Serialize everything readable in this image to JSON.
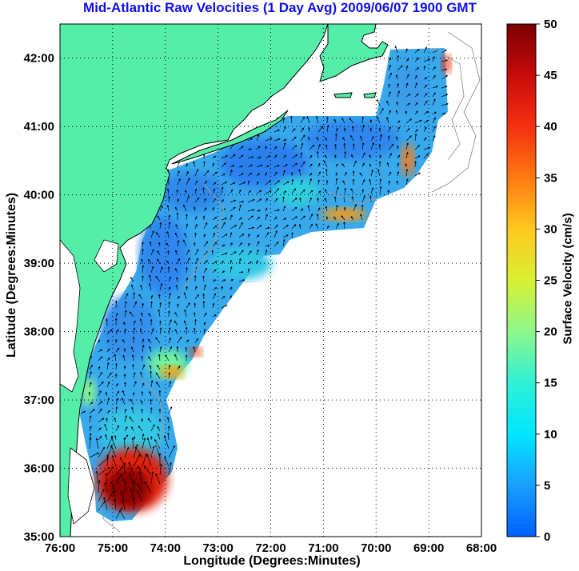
{
  "title": "Mid-Atlantic Raw Velocities (1 Day Avg) 2009/06/07 1900 GMT",
  "xlabel": "Longitude (Degrees:Minutes)",
  "ylabel": "Latitude (Degrees:Minutes)",
  "colorbar": {
    "label": "Surface Velocity (cm/s)",
    "min": 0,
    "max": 50,
    "ticks": [
      "0",
      "5",
      "10",
      "15",
      "20",
      "25",
      "30",
      "35",
      "40",
      "45",
      "50"
    ]
  },
  "map": {
    "lon_ticks": [
      "76:00",
      "75:00",
      "74:00",
      "73:00",
      "72:00",
      "71:00",
      "70:00",
      "69:00",
      "68:00"
    ],
    "lat_ticks": [
      "42:00",
      "41:00",
      "40:00",
      "39:00",
      "38:00",
      "37:00",
      "36:00",
      "35:00"
    ],
    "lon_range": [
      -76,
      -68
    ],
    "lat_range": [
      35,
      42.5
    ],
    "grid": true,
    "colors": {
      "land": "#55eea9",
      "coast": "#000000",
      "grid": "#000000",
      "title": "#1010e8"
    }
  },
  "chart_data": {
    "type": "heatmap",
    "title": "Mid-Atlantic Raw Velocities (1 Day Avg) 2009/06/07 1900 GMT",
    "xlabel": "Longitude (Degrees:Minutes)",
    "ylabel": "Latitude (Degrees:Minutes)",
    "xlim": [
      -76,
      -68
    ],
    "ylim": [
      35,
      42.5
    ],
    "colorbar_label": "Surface Velocity (cm/s)",
    "clim": [
      0,
      50
    ],
    "hotspots": [
      {
        "lon": -74.8,
        "lat": 35.6,
        "speed": 48
      },
      {
        "lon": -70.8,
        "lat": 39.75,
        "speed": 34
      },
      {
        "lon": -69.3,
        "lat": 40.4,
        "speed": 33
      },
      {
        "lon": -68.6,
        "lat": 42.0,
        "speed": 38
      },
      {
        "lon": -74.2,
        "lat": 37.3,
        "speed": 30
      },
      {
        "lon": -73.8,
        "lat": 37.8,
        "speed": 26
      }
    ]
  }
}
